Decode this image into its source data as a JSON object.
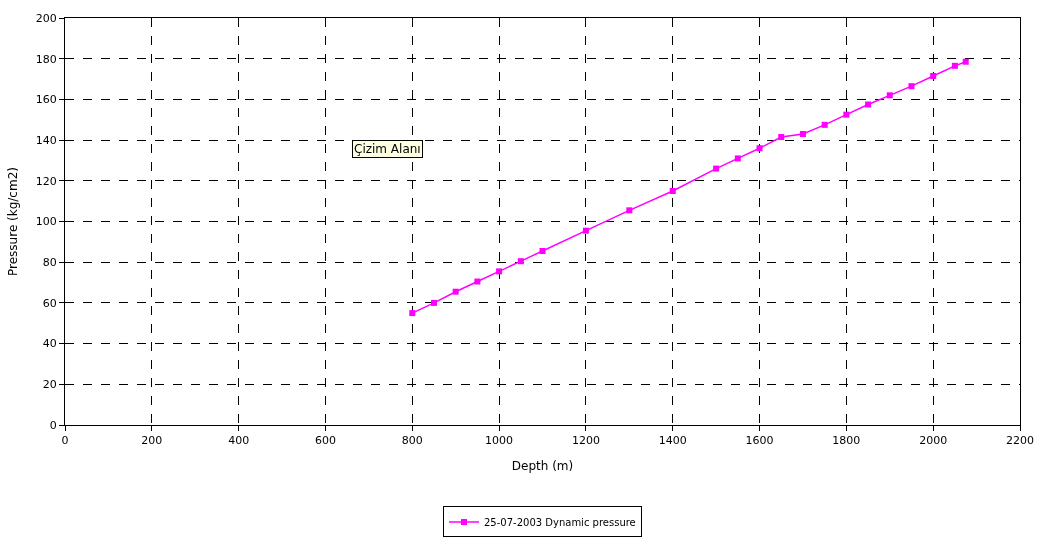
{
  "chart_data": {
    "type": "line",
    "xlabel": "Depth (m)",
    "ylabel": "Pressure (kg/cm2)",
    "x": [
      800,
      850,
      900,
      950,
      1000,
      1050,
      1100,
      1200,
      1300,
      1400,
      1500,
      1550,
      1600,
      1650,
      1700,
      1750,
      1800,
      1850,
      1900,
      1950,
      2000,
      2050,
      2075
    ],
    "series": [
      {
        "name": "25-07-2003 Dynamic pressure",
        "color": "#ff00ff",
        "values": [
          55,
          60,
          65.5,
          70.5,
          75.5,
          80.5,
          85.5,
          95.5,
          105.5,
          115,
          126,
          131,
          136,
          141.5,
          143,
          147.5,
          152.5,
          157.5,
          162,
          166.5,
          171.5,
          176.5,
          178.5
        ]
      }
    ],
    "xlim": [
      0,
      2200
    ],
    "xticks": [
      0,
      200,
      400,
      600,
      800,
      1000,
      1200,
      1400,
      1600,
      1800,
      2000,
      2200
    ],
    "ylim": [
      0,
      200
    ],
    "yticks": [
      0,
      20,
      40,
      60,
      80,
      100,
      120,
      140,
      160,
      180,
      200
    ],
    "grid": true,
    "legend": "bottom",
    "marker": "square",
    "line_style": "solid",
    "annotations": [
      "Çizim Alanı"
    ]
  }
}
